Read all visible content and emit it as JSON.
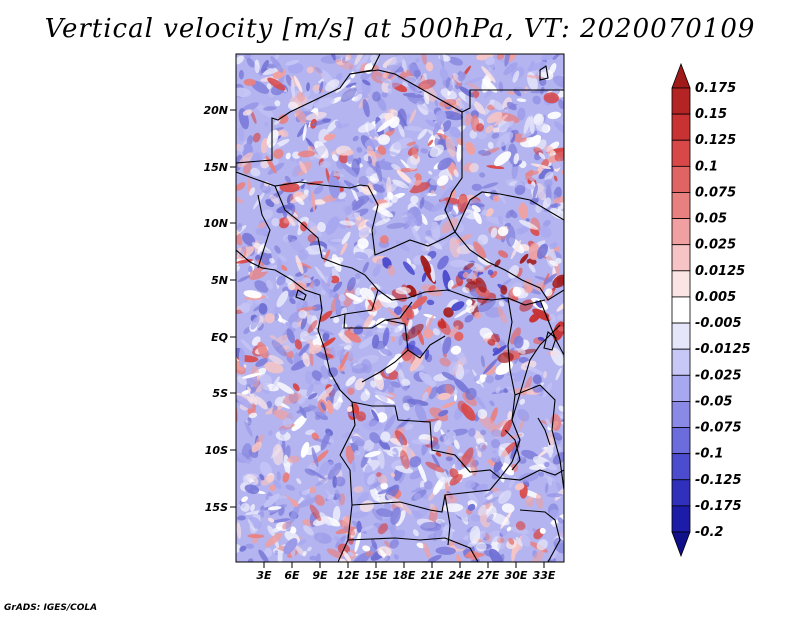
{
  "title": "Vertical velocity [m/s] at 500hPa, VT: 2020070109",
  "lat_labels": [
    "20N",
    "15N",
    "10N",
    "5N",
    "EQ",
    "5S",
    "10S",
    "15S"
  ],
  "lon_labels": [
    "3E",
    "6E",
    "9E",
    "12E",
    "15E",
    "18E",
    "21E",
    "24E",
    "27E",
    "30E",
    "33E"
  ],
  "colorbar": {
    "labels": [
      "0.175",
      "0.15",
      "0.125",
      "0.1",
      "0.075",
      "0.05",
      "0.025",
      "0.0125",
      "0.005",
      "-0.005",
      "-0.0125",
      "-0.025",
      "-0.05",
      "-0.075",
      "-0.1",
      "-0.125",
      "-0.175",
      "-0.2"
    ],
    "colors": [
      "#a01a1a",
      "#b42424",
      "#c83232",
      "#d84848",
      "#e06464",
      "#e88080",
      "#f0a0a0",
      "#f6c4c4",
      "#fbe4e4",
      "#ffffff",
      "#e6e6fb",
      "#c8c8f6",
      "#a8a8f0",
      "#8a8ae6",
      "#6c6cdc",
      "#4c4cce",
      "#3030bc",
      "#1c1ca8",
      "#10108a"
    ]
  },
  "footer": "GrADS: IGES/COLA"
}
